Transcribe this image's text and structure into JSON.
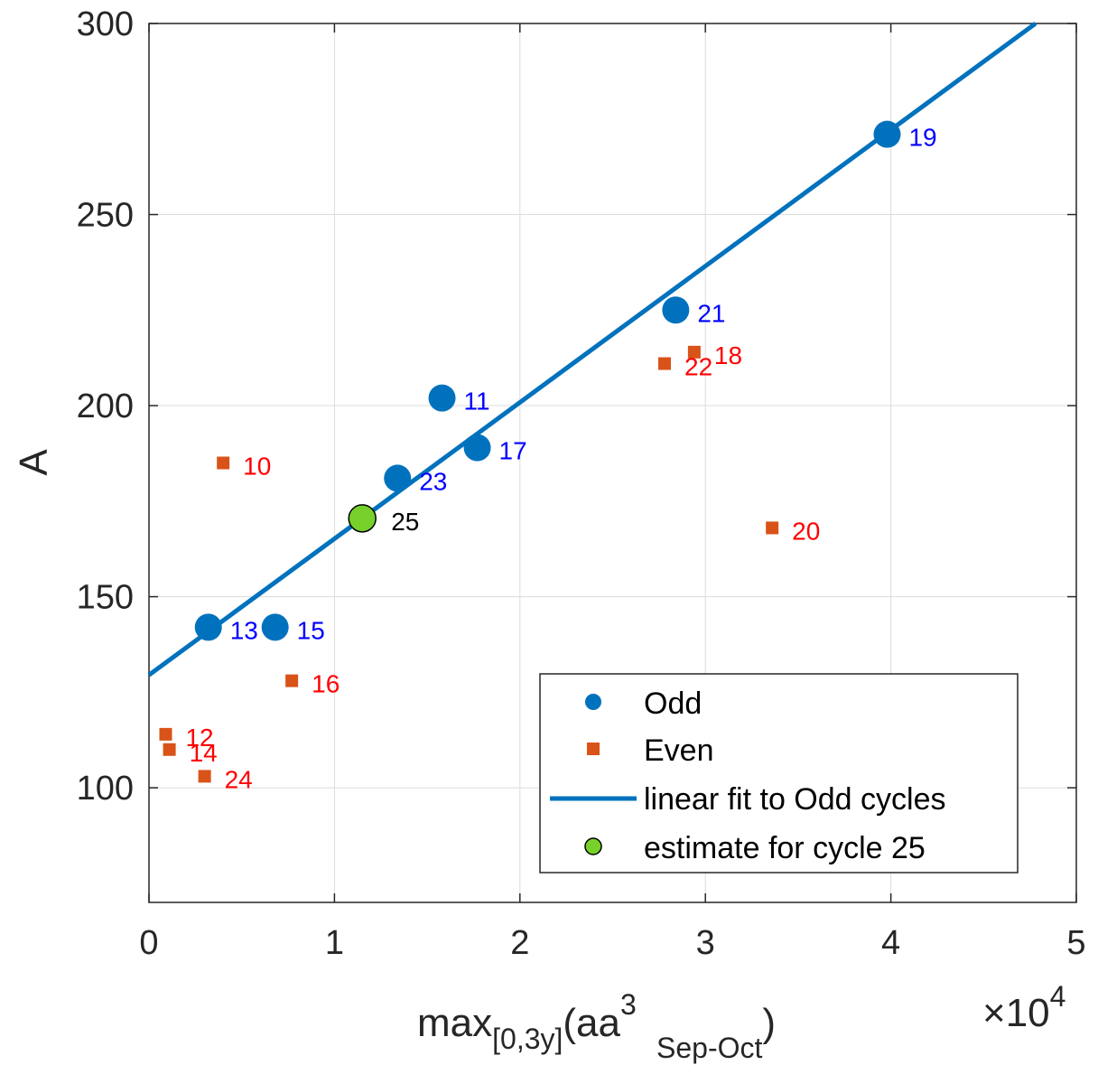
{
  "chart_data": {
    "type": "scatter",
    "title": "",
    "xlabel": {
      "base": "max",
      "sub": "[0,3y]",
      "paren_open": "(aa",
      "sup": "3",
      "sub2": "Sep-Oct",
      "paren_close": ")"
    },
    "ylabel": "A",
    "x_multiplier": {
      "prefix": "×10",
      "exponent": "4"
    },
    "xlim": [
      0,
      50000
    ],
    "ylim": [
      70,
      300
    ],
    "x_ticks": [
      0,
      10000,
      20000,
      30000,
      40000,
      50000
    ],
    "x_tick_labels": [
      "0",
      "1",
      "2",
      "3",
      "4",
      "5"
    ],
    "y_ticks": [
      100,
      150,
      200,
      250,
      300
    ],
    "y_tick_labels": [
      "100",
      "150",
      "200",
      "250",
      "300"
    ],
    "grid": true,
    "legend_position": "bottom-right",
    "series": [
      {
        "name": "Odd",
        "marker": "circle",
        "color": "#0072BD",
        "label_color": "#0000FF",
        "points": [
          {
            "x": 3200,
            "y": 142,
            "label": "13"
          },
          {
            "x": 6800,
            "y": 142,
            "label": "15"
          },
          {
            "x": 13400,
            "y": 181,
            "label": "23"
          },
          {
            "x": 15800,
            "y": 202,
            "label": "11"
          },
          {
            "x": 17700,
            "y": 189,
            "label": "17"
          },
          {
            "x": 28400,
            "y": 225,
            "label": "21"
          },
          {
            "x": 39800,
            "y": 271,
            "label": "19"
          }
        ]
      },
      {
        "name": "Even",
        "marker": "square",
        "color": "#D95319",
        "label_color": "#FF0000",
        "points": [
          {
            "x": 900,
            "y": 114,
            "label": "12"
          },
          {
            "x": 1100,
            "y": 110,
            "label": "14"
          },
          {
            "x": 3000,
            "y": 103,
            "label": "24"
          },
          {
            "x": 4000,
            "y": 185,
            "label": "10"
          },
          {
            "x": 7700,
            "y": 128,
            "label": "16"
          },
          {
            "x": 27800,
            "y": 211,
            "label": "22"
          },
          {
            "x": 29400,
            "y": 214,
            "label": "18"
          },
          {
            "x": 33600,
            "y": 168,
            "label": "20"
          }
        ]
      },
      {
        "name": "linear fit to Odd cycles",
        "type": "line",
        "color": "#0072BD",
        "x": [
          0,
          47800
        ],
        "y": [
          129.5,
          300
        ]
      },
      {
        "name": "estimate for cycle 25",
        "marker": "circle",
        "color": "#77D12A",
        "label_color": "#000000",
        "points": [
          {
            "x": 11500,
            "y": 170.5,
            "label": "25"
          }
        ]
      }
    ]
  }
}
